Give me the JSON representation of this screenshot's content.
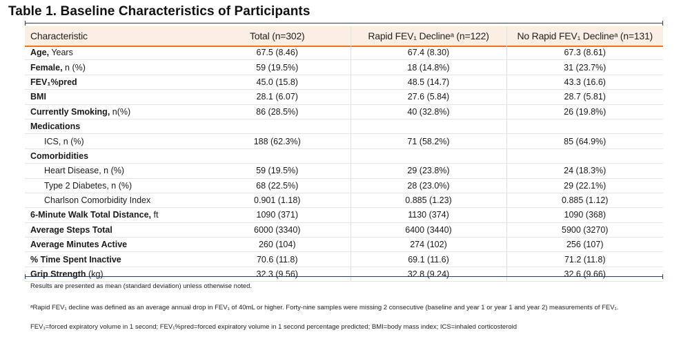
{
  "title": "Table 1. Baseline Characteristics of Participants",
  "columns": [
    "Characteristic",
    "Total (n=302)",
    "Rapid FEV₁ Declineᵃ (n=122)",
    "No Rapid FEV₁ Declineᵃ (n=131)"
  ],
  "rows": [
    {
      "label_bold": "Age,",
      "label_rest": " Years",
      "indent": false,
      "values": [
        "67.5 (8.46)",
        "67.4 (8.30)",
        "67.3 (8.61)"
      ]
    },
    {
      "label_bold": "Female,",
      "label_rest": " n (%)",
      "indent": false,
      "values": [
        "59 (19.5%)",
        "18 (14.8%)",
        "31 (23.7%)"
      ]
    },
    {
      "label_bold": "FEV₁%pred",
      "label_rest": "",
      "indent": false,
      "values": [
        "45.0 (15.8)",
        "48.5 (14.7)",
        "43.3 (16.6)"
      ]
    },
    {
      "label_bold": "BMI",
      "label_rest": "",
      "indent": false,
      "values": [
        "28.1 (6.07)",
        "27.6 (5.84)",
        "28.7 (5.81)"
      ]
    },
    {
      "label_bold": "Currently Smoking,",
      "label_rest": " n(%)",
      "indent": false,
      "values": [
        "86 (28.5%)",
        "40 (32.8%)",
        "26 (19.8%)"
      ]
    },
    {
      "label_bold": "Medications",
      "label_rest": "",
      "indent": false,
      "values": [
        "",
        "",
        ""
      ]
    },
    {
      "label_bold": "",
      "label_rest": "ICS, n (%)",
      "indent": true,
      "values": [
        "188 (62.3%)",
        "71 (58.2%)",
        "85 (64.9%)"
      ]
    },
    {
      "label_bold": "Comorbidities",
      "label_rest": "",
      "indent": false,
      "values": [
        "",
        "",
        ""
      ]
    },
    {
      "label_bold": "",
      "label_rest": "Heart Disease, n (%)",
      "indent": true,
      "values": [
        "59 (19.5%)",
        "29 (23.8%)",
        "24 (18.3%)"
      ]
    },
    {
      "label_bold": "",
      "label_rest": "Type 2 Diabetes, n (%)",
      "indent": true,
      "values": [
        "68 (22.5%)",
        "28 (23.0%)",
        "29 (22.1%)"
      ]
    },
    {
      "label_bold": "",
      "label_rest": "Charlson Comorbidity Index",
      "indent": true,
      "values": [
        "0.901 (1.18)",
        "0.885 (1.23)",
        "0.885 (1.12)"
      ]
    },
    {
      "label_bold": "6-Minute Walk Total Distance,",
      "label_rest": " ft",
      "indent": false,
      "values": [
        "1090 (371)",
        "1130 (374)",
        "1090 (368)"
      ]
    },
    {
      "label_bold": "Average Steps Total",
      "label_rest": "",
      "indent": false,
      "values": [
        "6000 (3340)",
        "6400 (3440)",
        "5900 (3270)"
      ]
    },
    {
      "label_bold": "Average Minutes Active",
      "label_rest": "",
      "indent": false,
      "values": [
        "260 (104)",
        "274 (102)",
        "256 (107)"
      ]
    },
    {
      "label_bold": "% Time Spent Inactive",
      "label_rest": "",
      "indent": false,
      "values": [
        "70.6 (11.8)",
        "69.1 (11.6)",
        "71.2 (11.8)"
      ]
    },
    {
      "label_bold": "Grip Strength",
      "label_rest": " (kg)",
      "indent": false,
      "values": [
        "32.3 (9.56)",
        "32.8 (9.24)",
        "32.6 (9.66)"
      ]
    }
  ],
  "notes": [
    "Results are presented as mean (standard deviation) unless otherwise noted.",
    "ᵃRapid FEV₁ decline was defined as an average annual drop in FEV₁ of 40mL or higher. Forty-nine samples were missing 2 consecutive (baseline and year 1 or year 1 and year 2) measurements of FEV₁.",
    "FEV₁=forced expiratory volume in 1 second; FEV₁%pred=forced expiratory volume in 1 second percentage predicted; BMI=body mass index; ICS=inhaled corticosteroid"
  ],
  "colors": {
    "accent": "#e8742b",
    "header_band": "#fbefe4",
    "rule": "#2b3a55"
  }
}
